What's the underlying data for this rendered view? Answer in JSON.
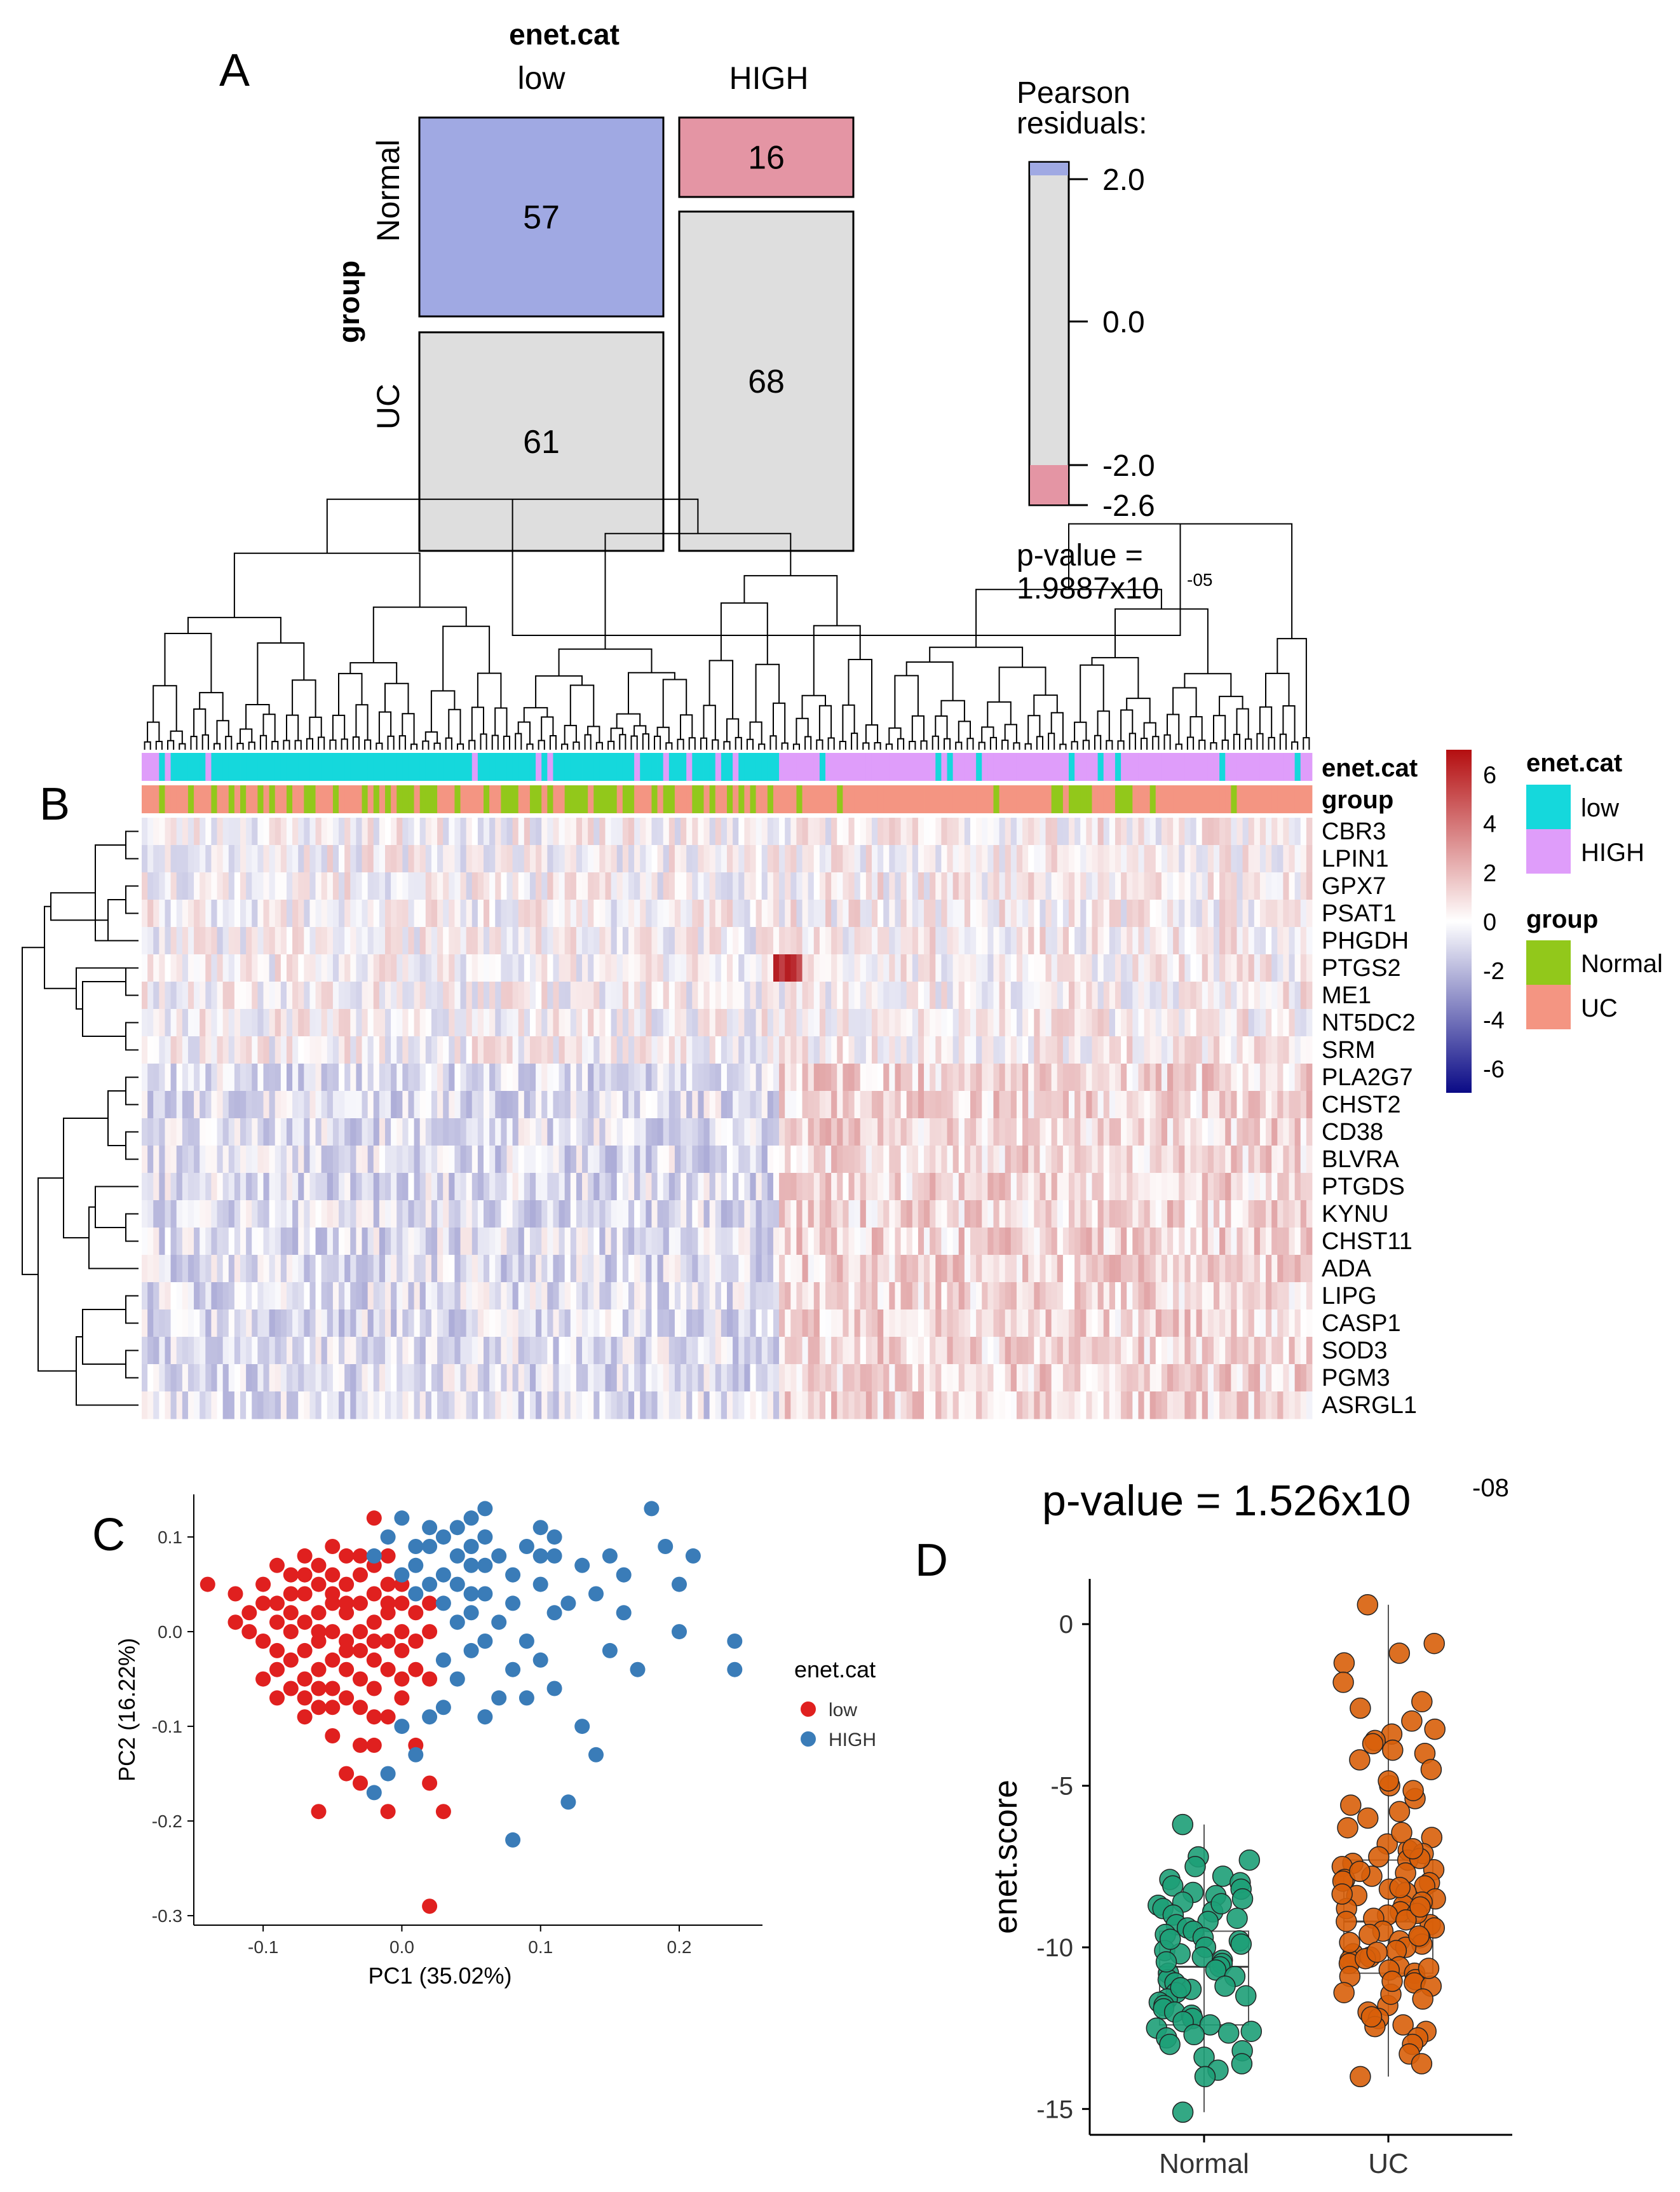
{
  "colors": {
    "blue_cell": "#a0a9e3",
    "pink_cell": "#e495a4",
    "grey_cell": "#dedede",
    "cyan": "#15d8dc",
    "violet": "#df9dfa",
    "green": "#92c81b",
    "salmon": "#f49582",
    "red_pt": "#e0201f",
    "blue_pt": "#3a7cb8",
    "teal_pt": "#1d9e77",
    "orange_pt": "#d85f0a"
  },
  "panels": {
    "A": {
      "label": "A",
      "x_var": "enet.cat",
      "y_var": "group"
    },
    "B": {
      "label": "B"
    },
    "C": {
      "label": "C"
    },
    "D": {
      "label": "D"
    }
  },
  "legend": {
    "residuals_title": "Pearson",
    "residuals_title2": "residuals:",
    "pvalue_line1": "p-value =",
    "pvalue_mantissa": "1.9887x10",
    "pvalue_exp": "-05",
    "b_enet_title": "enet.cat",
    "b_low": "low",
    "b_high": "HIGH",
    "b_group_title": "group",
    "b_normal": "Normal",
    "b_uc": "UC",
    "c_title": "enet.cat",
    "c_low": "low",
    "c_high": "HIGH",
    "track_enet": "enet.cat",
    "track_group": "group"
  },
  "chart_data": [
    {
      "type": "mosaic",
      "title": "A",
      "x_var": "enet.cat",
      "y_var": "group",
      "x_levels": [
        "low",
        "HIGH"
      ],
      "y_levels": [
        "Normal",
        "UC"
      ],
      "counts": [
        [
          57,
          16
        ],
        [
          61,
          68
        ]
      ],
      "shading": [
        [
          "positive",
          "negative"
        ],
        [
          "none",
          "none"
        ]
      ],
      "residual_scale": {
        "ticks": [
          "2.0",
          "0.0",
          "-2.0",
          "-2.6"
        ],
        "range": [
          -2.6,
          2.2
        ]
      },
      "p_value": "1.9887x10-05"
    },
    {
      "type": "heatmap",
      "title": "B",
      "genes": [
        "CBR3",
        "LPIN1",
        "GPX7",
        "PSAT1",
        "PHGDH",
        "PTGS2",
        "ME1",
        "NT5DC2",
        "SRM",
        "PLA2G7",
        "CHST2",
        "CD38",
        "BLVRA",
        "PTGDS",
        "KYNU",
        "CHST11",
        "ADA",
        "LIPG",
        "CASP1",
        "SOD3",
        "PGM3",
        "ASRGL1"
      ],
      "color_scale_ticks": [
        "6",
        "4",
        "2",
        "0",
        "-2",
        "-4",
        "-6"
      ],
      "color_range": [
        -7,
        7
      ],
      "annotation_tracks": [
        "enet.cat",
        "group"
      ],
      "n_samples": 202
    },
    {
      "type": "scatter",
      "title": "C",
      "xlabel": "PC1 (35.02%)",
      "ylabel": "PC2 (16.22%)",
      "xlim": [
        -0.15,
        0.26
      ],
      "ylim": [
        -0.31,
        0.145
      ],
      "x_ticks": [
        "-0.1",
        "0.0",
        "0.1",
        "0.2"
      ],
      "x_tick_values": [
        -0.1,
        0.0,
        0.1,
        0.2
      ],
      "y_ticks": [
        "0.1",
        "0.0",
        "-0.1",
        "-0.2",
        "-0.3"
      ],
      "y_tick_values": [
        0.1,
        0.0,
        -0.1,
        -0.2,
        -0.3
      ],
      "series": [
        {
          "name": "low",
          "points": [
            [
              -0.14,
              0.05
            ],
            [
              -0.12,
              0.04
            ],
            [
              -0.11,
              0.02
            ],
            [
              -0.1,
              0.05
            ],
            [
              -0.1,
              -0.01
            ],
            [
              -0.09,
              0.07
            ],
            [
              -0.09,
              0.03
            ],
            [
              -0.09,
              -0.04
            ],
            [
              -0.09,
              -0.07
            ],
            [
              -0.08,
              0.06
            ],
            [
              -0.08,
              0.02
            ],
            [
              -0.08,
              0.0
            ],
            [
              -0.08,
              -0.03
            ],
            [
              -0.08,
              -0.06
            ],
            [
              -0.07,
              0.08
            ],
            [
              -0.07,
              0.04
            ],
            [
              -0.07,
              0.01
            ],
            [
              -0.07,
              -0.02
            ],
            [
              -0.07,
              -0.05
            ],
            [
              -0.07,
              -0.09
            ],
            [
              -0.06,
              0.07
            ],
            [
              -0.06,
              0.05
            ],
            [
              -0.06,
              0.02
            ],
            [
              -0.06,
              -0.01
            ],
            [
              -0.06,
              -0.04
            ],
            [
              -0.06,
              -0.08
            ],
            [
              -0.06,
              -0.19
            ],
            [
              -0.05,
              0.09
            ],
            [
              -0.05,
              0.06
            ],
            [
              -0.05,
              0.03
            ],
            [
              -0.05,
              0.0
            ],
            [
              -0.05,
              -0.03
            ],
            [
              -0.05,
              -0.06
            ],
            [
              -0.05,
              -0.11
            ],
            [
              -0.04,
              0.08
            ],
            [
              -0.04,
              0.05
            ],
            [
              -0.04,
              0.02
            ],
            [
              -0.04,
              -0.01
            ],
            [
              -0.04,
              -0.04
            ],
            [
              -0.04,
              -0.07
            ],
            [
              -0.04,
              -0.15
            ],
            [
              -0.03,
              0.06
            ],
            [
              -0.03,
              0.03
            ],
            [
              -0.03,
              0.0
            ],
            [
              -0.03,
              -0.02
            ],
            [
              -0.03,
              -0.05
            ],
            [
              -0.03,
              -0.08
            ],
            [
              -0.03,
              -0.16
            ],
            [
              -0.02,
              0.12
            ],
            [
              -0.02,
              0.07
            ],
            [
              -0.02,
              0.04
            ],
            [
              -0.02,
              0.01
            ],
            [
              -0.02,
              -0.03
            ],
            [
              -0.02,
              -0.06
            ],
            [
              -0.02,
              -0.12
            ],
            [
              -0.01,
              0.05
            ],
            [
              -0.01,
              0.02
            ],
            [
              -0.01,
              -0.01
            ],
            [
              -0.01,
              -0.04
            ],
            [
              -0.01,
              -0.09
            ],
            [
              -0.01,
              -0.19
            ],
            [
              0.0,
              0.03
            ],
            [
              0.0,
              0.0
            ],
            [
              0.0,
              -0.02
            ],
            [
              0.0,
              -0.07
            ],
            [
              0.01,
              0.02
            ],
            [
              0.01,
              -0.04
            ],
            [
              0.01,
              -0.12
            ],
            [
              0.02,
              0.0
            ],
            [
              0.02,
              -0.05
            ],
            [
              0.02,
              -0.16
            ],
            [
              0.03,
              -0.19
            ],
            [
              0.02,
              -0.29
            ],
            [
              -0.11,
              0.0
            ],
            [
              -0.1,
              -0.05
            ],
            [
              -0.09,
              -0.02
            ],
            [
              -0.08,
              0.04
            ],
            [
              -0.07,
              -0.07
            ],
            [
              -0.06,
              0.0
            ],
            [
              -0.05,
              -0.08
            ],
            [
              -0.04,
              0.03
            ],
            [
              -0.03,
              -0.12
            ],
            [
              -0.02,
              -0.09
            ],
            [
              -0.01,
              0.08
            ],
            [
              0.0,
              0.05
            ],
            [
              0.01,
              -0.01
            ],
            [
              -0.12,
              0.01
            ],
            [
              -0.1,
              0.03
            ],
            [
              -0.09,
              0.01
            ],
            [
              -0.07,
              0.06
            ],
            [
              -0.06,
              -0.06
            ],
            [
              -0.05,
              0.04
            ],
            [
              -0.04,
              -0.02
            ],
            [
              -0.03,
              0.08
            ],
            [
              -0.02,
              -0.01
            ],
            [
              -0.01,
              0.03
            ],
            [
              0.0,
              -0.05
            ],
            [
              0.02,
              0.03
            ]
          ]
        },
        {
          "name": "HIGH",
          "points": [
            [
              -0.02,
              0.08
            ],
            [
              -0.01,
              0.1
            ],
            [
              0.0,
              0.12
            ],
            [
              0.01,
              0.07
            ],
            [
              0.01,
              0.04
            ],
            [
              0.02,
              0.11
            ],
            [
              0.02,
              0.09
            ],
            [
              0.03,
              0.1
            ],
            [
              0.03,
              0.06
            ],
            [
              0.03,
              0.03
            ],
            [
              0.04,
              0.08
            ],
            [
              0.04,
              0.05
            ],
            [
              0.04,
              0.01
            ],
            [
              0.04,
              -0.05
            ],
            [
              0.05,
              0.09
            ],
            [
              0.05,
              0.07
            ],
            [
              0.05,
              0.12
            ],
            [
              0.05,
              -0.02
            ],
            [
              0.06,
              0.1
            ],
            [
              0.06,
              0.04
            ],
            [
              0.06,
              -0.09
            ],
            [
              0.07,
              0.08
            ],
            [
              0.07,
              0.01
            ],
            [
              0.08,
              0.06
            ],
            [
              0.08,
              -0.04
            ],
            [
              0.08,
              -0.22
            ],
            [
              0.09,
              0.09
            ],
            [
              0.09,
              -0.01
            ],
            [
              0.1,
              0.11
            ],
            [
              0.1,
              0.05
            ],
            [
              0.1,
              -0.03
            ],
            [
              0.11,
              0.08
            ],
            [
              0.11,
              0.02
            ],
            [
              0.11,
              -0.06
            ],
            [
              0.12,
              -0.18
            ],
            [
              0.13,
              0.07
            ],
            [
              0.13,
              -0.1
            ],
            [
              0.14,
              0.04
            ],
            [
              0.14,
              -0.13
            ],
            [
              0.15,
              0.08
            ],
            [
              0.16,
              0.06
            ],
            [
              0.16,
              0.02
            ],
            [
              0.17,
              -0.04
            ],
            [
              0.18,
              0.13
            ],
            [
              0.19,
              0.09
            ],
            [
              0.2,
              0.0
            ],
            [
              0.2,
              0.05
            ],
            [
              0.21,
              0.08
            ],
            [
              0.24,
              -0.01
            ],
            [
              0.24,
              -0.04
            ],
            [
              0.05,
              0.02
            ],
            [
              0.06,
              -0.01
            ],
            [
              0.07,
              -0.07
            ],
            [
              0.02,
              -0.09
            ],
            [
              0.03,
              -0.03
            ],
            [
              0.0,
              -0.1
            ],
            [
              0.01,
              -0.13
            ],
            [
              -0.01,
              -0.15
            ],
            [
              -0.02,
              -0.17
            ],
            [
              0.0,
              0.06
            ],
            [
              0.02,
              0.05
            ],
            [
              0.03,
              -0.08
            ],
            [
              0.12,
              0.03
            ],
            [
              0.09,
              -0.07
            ],
            [
              0.06,
              0.07
            ],
            [
              0.04,
              0.11
            ],
            [
              0.08,
              0.03
            ],
            [
              0.15,
              -0.02
            ],
            [
              0.1,
              0.08
            ],
            [
              0.06,
              0.13
            ],
            [
              0.11,
              0.1
            ],
            [
              0.01,
              0.09
            ],
            [
              0.05,
              0.04
            ]
          ]
        }
      ],
      "legend": "right"
    },
    {
      "type": "box",
      "title": "D",
      "annotation": "p-value = 1.526x10-08",
      "pvalue_mantissa": "p-value = 1.526x10",
      "pvalue_exp": "-08",
      "ylabel": "enet.score",
      "ylim": [
        -15.8,
        1.4
      ],
      "y_ticks": [
        "0",
        "-5",
        "-10",
        "-15"
      ],
      "y_tick_values": [
        0,
        -5,
        -10,
        -15
      ],
      "categories": [
        "Normal",
        "UC"
      ],
      "boxes": [
        {
          "name": "Normal",
          "q1": -12.4,
          "median": -10.6,
          "q3": -9.5,
          "whisker_low": -15.1,
          "whisker_high": -6.2
        },
        {
          "name": "UC",
          "q1": -10.8,
          "median": -9.2,
          "q3": -7.3,
          "whisker_low": -14.0,
          "whisker_high": 0.6
        }
      ],
      "series": [
        {
          "name": "Normal",
          "values": [
            -6.2,
            -7.2,
            -7.3,
            -7.5,
            -7.8,
            -7.9,
            -8.0,
            -8.1,
            -8.2,
            -8.3,
            -8.4,
            -8.5,
            -8.6,
            -8.7,
            -8.8,
            -8.9,
            -9.0,
            -9.1,
            -9.2,
            -9.3,
            -9.4,
            -9.5,
            -9.6,
            -9.7,
            -9.8,
            -9.9,
            -10.0,
            -10.1,
            -10.2,
            -10.3,
            -10.4,
            -10.5,
            -10.6,
            -10.7,
            -10.8,
            -10.9,
            -11.0,
            -11.1,
            -11.2,
            -11.3,
            -11.4,
            -11.5,
            -11.6,
            -11.7,
            -11.8,
            -11.9,
            -12.0,
            -12.1,
            -12.2,
            -12.3,
            -12.4,
            -12.5,
            -12.6,
            -12.7,
            -12.8,
            -13.0,
            -13.2,
            -13.4,
            -13.6,
            -13.8,
            -14.0,
            -15.1,
            -10.45,
            -9.75,
            -11.25,
            -12.65,
            -8.65
          ]
        },
        {
          "name": "UC",
          "values": [
            0.6,
            -0.6,
            -0.9,
            -1.2,
            -1.8,
            -2.4,
            -2.6,
            -3.0,
            -3.4,
            -3.6,
            -3.7,
            -3.9,
            -4.0,
            -4.2,
            -4.5,
            -5.0,
            -5.4,
            -5.6,
            -5.8,
            -6.0,
            -6.3,
            -6.6,
            -6.8,
            -7.0,
            -7.1,
            -7.2,
            -7.3,
            -7.4,
            -7.5,
            -7.6,
            -7.7,
            -7.8,
            -7.9,
            -8.0,
            -8.1,
            -8.2,
            -8.3,
            -8.4,
            -8.5,
            -8.6,
            -8.7,
            -8.8,
            -8.9,
            -9.0,
            -9.1,
            -9.2,
            -9.3,
            -9.4,
            -9.5,
            -9.6,
            -9.7,
            -9.8,
            -9.9,
            -10.0,
            -10.1,
            -10.2,
            -10.3,
            -10.4,
            -10.5,
            -10.6,
            -10.7,
            -10.8,
            -10.9,
            -11.0,
            -11.1,
            -11.2,
            -11.4,
            -11.6,
            -11.8,
            -12.0,
            -12.2,
            -12.4,
            -12.6,
            -12.8,
            -13.0,
            -13.3,
            -13.6,
            -14.0,
            -7.25,
            -8.15,
            -8.95,
            -9.65,
            -10.35,
            -6.45,
            -7.95,
            -9.15,
            -10.65,
            -11.45,
            -5.15,
            -12.45,
            -8.35,
            -9.85,
            -3.25,
            -4.85,
            -7.65,
            -6.95,
            -8.75,
            -10.15,
            -11.05,
            -12.15
          ]
        }
      ]
    }
  ]
}
